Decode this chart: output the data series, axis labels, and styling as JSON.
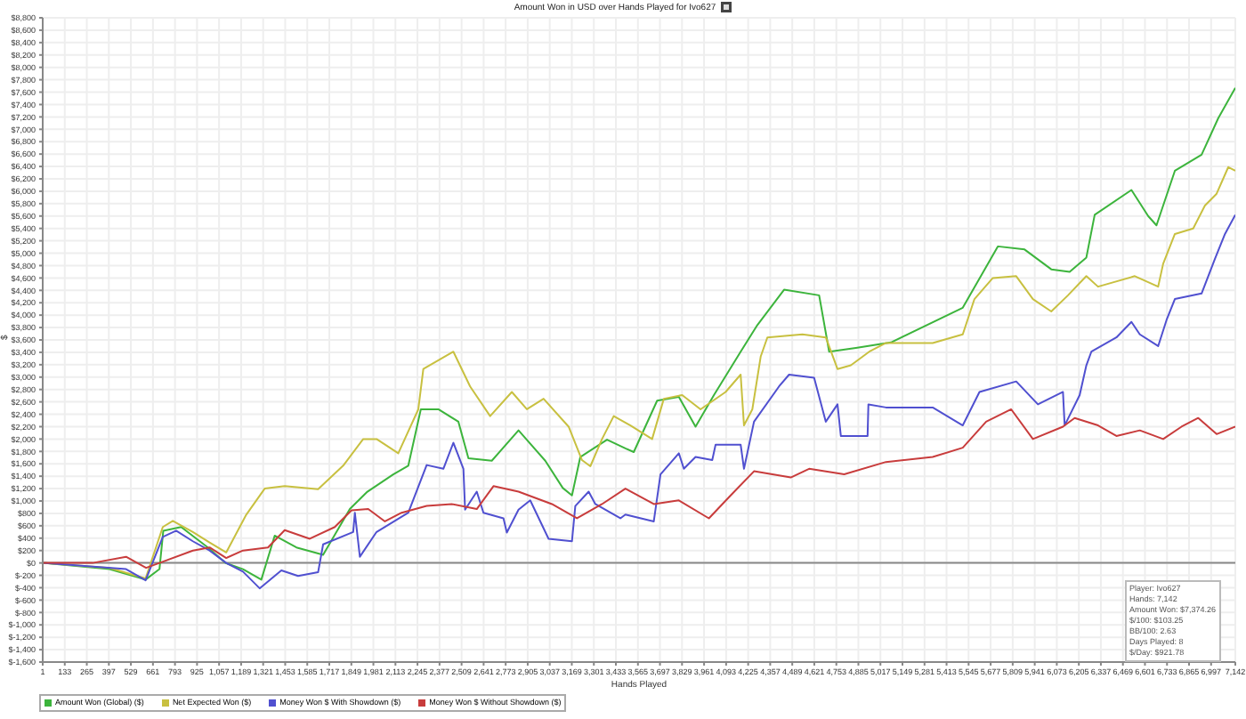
{
  "chart_data": {
    "type": "line",
    "title": "Amount Won in USD over Hands Played for Ivo627",
    "xlabel": "Hands Played",
    "ylabel": "$",
    "xlim": [
      1,
      7142
    ],
    "xticks": [
      1,
      133,
      265,
      397,
      529,
      661,
      793,
      925,
      {
        "value": 1057,
        "label": "1,057"
      },
      {
        "value": 1189,
        "label": "1,189"
      },
      {
        "value": 1321,
        "label": "1,321"
      },
      {
        "value": 1453,
        "label": "1,453"
      },
      {
        "value": 1585,
        "label": "1,585"
      },
      {
        "value": 1717,
        "label": "1,717"
      },
      {
        "value": 1849,
        "label": "1,849"
      },
      {
        "value": 1981,
        "label": "1,981"
      },
      {
        "value": 2113,
        "label": "2,113"
      },
      {
        "value": 2245,
        "label": "2,245"
      },
      {
        "value": 2377,
        "label": "2,377"
      },
      {
        "value": 2509,
        "label": "2,509"
      },
      {
        "value": 2641,
        "label": "2,641"
      },
      {
        "value": 2773,
        "label": "2,773"
      },
      {
        "value": 2905,
        "label": "2,905"
      },
      {
        "value": 3037,
        "label": "3,037"
      },
      {
        "value": 3169,
        "label": "3,169"
      },
      {
        "value": 3301,
        "label": "3,301"
      },
      {
        "value": 3433,
        "label": "3,433"
      },
      {
        "value": 3565,
        "label": "3,565"
      },
      {
        "value": 3697,
        "label": "3,697"
      },
      {
        "value": 3829,
        "label": "3,829"
      },
      {
        "value": 3961,
        "label": "3,961"
      },
      {
        "value": 4093,
        "label": "4,093"
      },
      {
        "value": 4225,
        "label": "4,225"
      },
      {
        "value": 4357,
        "label": "4,357"
      },
      {
        "value": 4489,
        "label": "4,489"
      },
      {
        "value": 4621,
        "label": "4,621"
      },
      {
        "value": 4753,
        "label": "4,753"
      },
      {
        "value": 4885,
        "label": "4,885"
      },
      {
        "value": 5017,
        "label": "5,017"
      },
      {
        "value": 5149,
        "label": "5,149"
      },
      {
        "value": 5281,
        "label": "5,281"
      },
      {
        "value": 5413,
        "label": "5,413"
      },
      {
        "value": 5545,
        "label": "5,545"
      },
      {
        "value": 5677,
        "label": "5,677"
      },
      {
        "value": 5809,
        "label": "5,809"
      },
      {
        "value": 5941,
        "label": "5,941"
      },
      {
        "value": 6073,
        "label": "6,073"
      },
      {
        "value": 6205,
        "label": "6,205"
      },
      {
        "value": 6337,
        "label": "6,337"
      },
      {
        "value": 6469,
        "label": "6,469"
      },
      {
        "value": 6601,
        "label": "6,601"
      },
      {
        "value": 6733,
        "label": "6,733"
      },
      {
        "value": 6865,
        "label": "6,865"
      },
      {
        "value": 6997,
        "label": "6,997"
      },
      {
        "value": 7142,
        "label": "7,142"
      }
    ],
    "ylim": [
      -1600,
      8800
    ],
    "yticks": [
      {
        "value": -1600,
        "label": "$-1,600"
      },
      {
        "value": -1400,
        "label": "$-1,400"
      },
      {
        "value": -1200,
        "label": "$-1,200"
      },
      {
        "value": -1000,
        "label": "$-1,000"
      },
      {
        "value": -800,
        "label": "$-800"
      },
      {
        "value": -600,
        "label": "$-600"
      },
      {
        "value": -400,
        "label": "$-400"
      },
      {
        "value": -200,
        "label": "$-200"
      },
      {
        "value": 0,
        "label": "$0"
      },
      {
        "value": 200,
        "label": "$200"
      },
      {
        "value": 400,
        "label": "$400"
      },
      {
        "value": 600,
        "label": "$600"
      },
      {
        "value": 800,
        "label": "$800"
      },
      {
        "value": 1000,
        "label": "$1,000"
      },
      {
        "value": 1200,
        "label": "$1,200"
      },
      {
        "value": 1400,
        "label": "$1,400"
      },
      {
        "value": 1600,
        "label": "$1,600"
      },
      {
        "value": 1800,
        "label": "$1,800"
      },
      {
        "value": 2000,
        "label": "$2,000"
      },
      {
        "value": 2200,
        "label": "$2,200"
      },
      {
        "value": 2400,
        "label": "$2,400"
      },
      {
        "value": 2600,
        "label": "$2,600"
      },
      {
        "value": 2800,
        "label": "$2,800"
      },
      {
        "value": 3000,
        "label": "$3,000"
      },
      {
        "value": 3200,
        "label": "$3,200"
      },
      {
        "value": 3400,
        "label": "$3,400"
      },
      {
        "value": 3600,
        "label": "$3,600"
      },
      {
        "value": 3800,
        "label": "$3,800"
      },
      {
        "value": 4000,
        "label": "$4,000"
      },
      {
        "value": 4200,
        "label": "$4,200"
      },
      {
        "value": 4400,
        "label": "$4,400"
      },
      {
        "value": 4600,
        "label": "$4,600"
      },
      {
        "value": 4800,
        "label": "$4,800"
      },
      {
        "value": 5000,
        "label": "$5,000"
      },
      {
        "value": 5200,
        "label": "$5,200"
      },
      {
        "value": 5400,
        "label": "$5,400"
      },
      {
        "value": 5600,
        "label": "$5,600"
      },
      {
        "value": 5800,
        "label": "$5,800"
      },
      {
        "value": 6000,
        "label": "$6,000"
      },
      {
        "value": 6200,
        "label": "$6,200"
      },
      {
        "value": 6400,
        "label": "$6,400"
      },
      {
        "value": 6600,
        "label": "$6,600"
      },
      {
        "value": 6800,
        "label": "$6,800"
      },
      {
        "value": 7000,
        "label": "$7,000"
      },
      {
        "value": 7200,
        "label": "$7,200"
      },
      {
        "value": 7400,
        "label": "$7,400"
      },
      {
        "value": 7600,
        "label": "$7,600"
      },
      {
        "value": 7800,
        "label": "$7,800"
      },
      {
        "value": 8000,
        "label": "$8,000"
      },
      {
        "value": 8200,
        "label": "$8,200"
      },
      {
        "value": 8400,
        "label": "$8,400"
      },
      {
        "value": 8600,
        "label": "$8,600"
      },
      {
        "value": 8800,
        "label": "$8,800"
      }
    ],
    "grid": true,
    "legend": "bottom left",
    "marker": "none",
    "line_style": "solid",
    "ref_lines": [
      {
        "axis": "y",
        "value": 0,
        "color": "#888888"
      }
    ],
    "annotations": [
      "Player: Ivo627",
      "Hands: 7,142",
      "Amount Won: $7,374.26",
      "$/100: $103.25",
      "BB/100: 2.63",
      "Days Played: 8",
      "$/Day: $921.78"
    ],
    "series": [
      {
        "name": "Amount Won (Global) ($)",
        "color": "#3cb43c",
        "x": [
          1,
          400,
          617,
          700,
          723,
          830,
          990,
          1095,
          1200,
          1310,
          1390,
          1520,
          1680,
          1840,
          1945,
          2100,
          2190,
          2265,
          2370,
          2490,
          2550,
          2690,
          2850,
          3010,
          3115,
          3170,
          3220,
          3380,
          3490,
          3540,
          3680,
          3810,
          3910,
          4020,
          4180,
          4280,
          4440,
          4650,
          4710,
          4870,
          5080,
          5510,
          5720,
          5880,
          6040,
          6150,
          6250,
          6300,
          6520,
          6620,
          6670,
          6780,
          6940,
          7040,
          7142
        ],
        "values": [
          0,
          -100,
          -270,
          -100,
          520,
          580,
          250,
          0,
          -100,
          -270,
          440,
          250,
          130,
          870,
          1150,
          1430,
          1570,
          2480,
          2480,
          2280,
          1690,
          1650,
          2140,
          1650,
          1210,
          1090,
          1710,
          1990,
          1850,
          1790,
          2620,
          2680,
          2200,
          2710,
          3410,
          3840,
          4410,
          4320,
          3410,
          3470,
          3560,
          4120,
          5110,
          5060,
          4740,
          4700,
          4930,
          5620,
          6020,
          5600,
          5450,
          6330,
          6590,
          7180,
          7670
        ]
      },
      {
        "name": "Net Expected Won ($)",
        "color": "#c8c040",
        "x": [
          1,
          400,
          617,
          720,
          780,
          900,
          1000,
          1100,
          1220,
          1330,
          1450,
          1650,
          1800,
          1920,
          2000,
          2130,
          2250,
          2280,
          2460,
          2560,
          2680,
          2810,
          2900,
          3000,
          3150,
          3230,
          3280,
          3350,
          3420,
          3520,
          3650,
          3720,
          3830,
          3940,
          4090,
          4180,
          4200,
          4250,
          4300,
          4340,
          4550,
          4690,
          4760,
          4840,
          4950,
          5050,
          5330,
          5510,
          5580,
          5690,
          5830,
          5930,
          6040,
          6140,
          6250,
          6320,
          6540,
          6680,
          6710,
          6780,
          6890,
          6960,
          7030,
          7100,
          7142
        ],
        "values": [
          0,
          -80,
          -250,
          580,
          680,
          500,
          330,
          170,
          780,
          1200,
          1240,
          1190,
          1570,
          2000,
          2000,
          1770,
          2480,
          3130,
          3410,
          2850,
          2370,
          2760,
          2480,
          2650,
          2200,
          1660,
          1560,
          2000,
          2370,
          2220,
          2000,
          2650,
          2710,
          2480,
          2760,
          3040,
          2220,
          2480,
          3330,
          3640,
          3690,
          3640,
          3130,
          3190,
          3410,
          3550,
          3550,
          3690,
          4260,
          4600,
          4630,
          4260,
          4060,
          4320,
          4630,
          4460,
          4630,
          4460,
          4830,
          5310,
          5400,
          5770,
          5960,
          6390,
          6330
        ]
      },
      {
        "name": "Money Won $ With Showdown ($)",
        "color": "#5050d0",
        "x": [
          1,
          500,
          617,
          720,
          800,
          900,
          1000,
          1100,
          1200,
          1300,
          1430,
          1530,
          1650,
          1680,
          1860,
          1870,
          1900,
          2000,
          2190,
          2300,
          2400,
          2460,
          2520,
          2530,
          2600,
          2640,
          2760,
          2780,
          2850,
          2920,
          3030,
          3170,
          3190,
          3270,
          3310,
          3460,
          3490,
          3660,
          3700,
          3810,
          3840,
          3910,
          4010,
          4030,
          4180,
          4200,
          4260,
          4410,
          4470,
          4620,
          4690,
          4760,
          4780,
          4940,
          4945,
          5050,
          5330,
          5510,
          5610,
          5830,
          5960,
          6110,
          6120,
          6210,
          6250,
          6280,
          6430,
          6520,
          6570,
          6680,
          6730,
          6780,
          6940,
          6980,
          7020,
          7080,
          7142
        ],
        "values": [
          0,
          -100,
          -280,
          420,
          520,
          350,
          200,
          0,
          -140,
          -410,
          -120,
          -210,
          -150,
          300,
          500,
          810,
          100,
          500,
          810,
          1580,
          1520,
          1940,
          1520,
          860,
          1150,
          810,
          720,
          490,
          860,
          1010,
          390,
          350,
          920,
          1150,
          950,
          720,
          780,
          670,
          1430,
          1770,
          1520,
          1710,
          1660,
          1910,
          1910,
          1520,
          2280,
          2850,
          3040,
          2990,
          2280,
          2560,
          2050,
          2050,
          2560,
          2510,
          2510,
          2220,
          2760,
          2930,
          2560,
          2760,
          2220,
          2710,
          3190,
          3410,
          3640,
          3890,
          3690,
          3500,
          3920,
          4260,
          4350,
          4630,
          4910,
          5310,
          5620
        ]
      },
      {
        "name": "Money Won $ Without Showdown ($)",
        "color": "#c83c3c",
        "x": [
          1,
          300,
          500,
          620,
          700,
          900,
          1000,
          1100,
          1200,
          1350,
          1450,
          1600,
          1750,
          1850,
          1950,
          2050,
          2150,
          2300,
          2450,
          2600,
          2700,
          2850,
          3050,
          3200,
          3350,
          3490,
          3660,
          3810,
          3990,
          4120,
          4260,
          4480,
          4590,
          4800,
          5050,
          5330,
          5510,
          5650,
          5800,
          5930,
          6110,
          6180,
          6320,
          6430,
          6570,
          6710,
          6820,
          6920,
          7030,
          7142
        ],
        "values": [
          0,
          0,
          100,
          -80,
          0,
          200,
          250,
          80,
          200,
          250,
          530,
          390,
          580,
          850,
          870,
          670,
          810,
          920,
          950,
          870,
          1240,
          1150,
          950,
          720,
          950,
          1200,
          950,
          1010,
          720,
          1090,
          1480,
          1380,
          1520,
          1430,
          1630,
          1710,
          1860,
          2280,
          2480,
          2000,
          2200,
          2340,
          2220,
          2050,
          2140,
          2000,
          2200,
          2340,
          2080,
          2200
        ]
      }
    ]
  }
}
